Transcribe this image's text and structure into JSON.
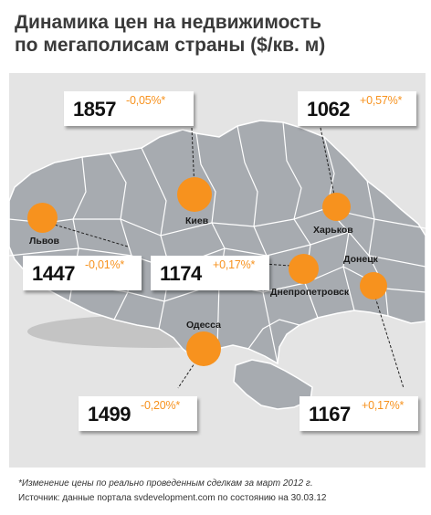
{
  "title_line1": "Динамика цен на недвижимость",
  "title_line2": "по мегаполисам страны ($/кв. м)",
  "cities": [
    {
      "id": "kiev",
      "name": "Киев",
      "price": "1857",
      "change": "-0,05%*"
    },
    {
      "id": "kharkov",
      "name": "Харьков",
      "price": "1062",
      "change": "+0,57%*"
    },
    {
      "id": "lviv",
      "name": "Львов",
      "price": "1447",
      "change": "-0,01%*"
    },
    {
      "id": "dnepr",
      "name": "Днепропетровск",
      "price": "1174",
      "change": "+0,17%*"
    },
    {
      "id": "donetsk",
      "name": "Донецк",
      "price": "1167",
      "change": "+0,17%*"
    },
    {
      "id": "odessa",
      "name": "Одесса",
      "price": "1499",
      "change": "-0,20%*"
    }
  ],
  "footnote": "*Изменение цены по реально проведенным сделкам за март 2012 г.",
  "source": "Источник: данные портала svdevelopment.com по состоянию на 30.03.12",
  "colors": {
    "accent": "#f7921e",
    "land": "#a7abb0",
    "panel": "#e4e4e4",
    "borders": "#ffffff"
  }
}
